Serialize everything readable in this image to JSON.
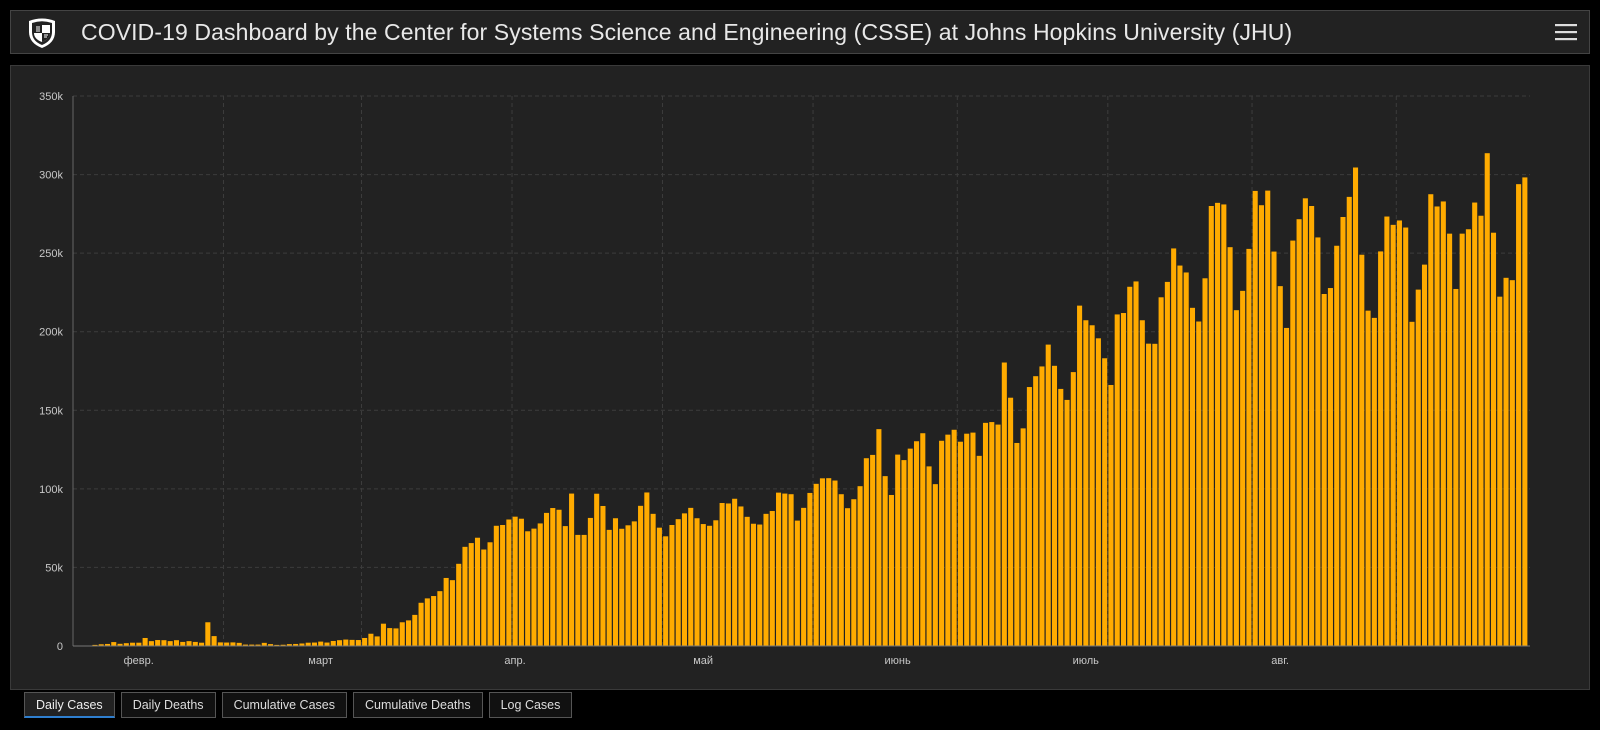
{
  "header": {
    "title": "COVID-19 Dashboard by the Center for Systems Science and Engineering (CSSE) at Johns Hopkins University (JHU)"
  },
  "tabs": [
    {
      "label": "Daily Cases",
      "active": true
    },
    {
      "label": "Daily Deaths",
      "active": false
    },
    {
      "label": "Cumulative Cases",
      "active": false
    },
    {
      "label": "Cumulative Deaths",
      "active": false
    },
    {
      "label": "Log Cases",
      "active": false
    }
  ],
  "colors": {
    "bar": "#ffab00",
    "background": "#222222",
    "grid": "#3c3c3c",
    "axis_text": "#c8c8c8",
    "active_tab_accent": "#2f7fcf"
  },
  "chart_data": {
    "type": "bar",
    "title": "",
    "xlabel": "",
    "ylabel": "",
    "ylim": [
      0,
      350000
    ],
    "grid": true,
    "yticks": [
      0,
      50000,
      100000,
      150000,
      200000,
      250000,
      300000,
      350000
    ],
    "ytick_labels": [
      "0",
      "50k",
      "100k",
      "150k",
      "200k",
      "250k",
      "300k",
      "350k"
    ],
    "x_start": "2020-01-22",
    "xtick_labels": [
      {
        "label": "февр.",
        "date": "2020-02-01"
      },
      {
        "label": "март",
        "date": "2020-03-01"
      },
      {
        "label": "апр.",
        "date": "2020-04-01"
      },
      {
        "label": "май",
        "date": "2020-05-01"
      },
      {
        "label": "июнь",
        "date": "2020-06-01"
      },
      {
        "label": "июль",
        "date": "2020-07-01"
      },
      {
        "label": "авг.",
        "date": "2020-08-01"
      }
    ],
    "values": [
      0,
      100,
      300,
      700,
      1100,
      1300,
      2500,
      1400,
      1800,
      2100,
      2100,
      5100,
      3100,
      3800,
      3700,
      3100,
      3700,
      2600,
      3100,
      2600,
      2100,
      15100,
      6300,
      2300,
      2200,
      2300,
      2000,
      900,
      900,
      900,
      2000,
      1200,
      700,
      800,
      1200,
      1300,
      1600,
      2100,
      2200,
      2800,
      2200,
      3200,
      3700,
      4100,
      3900,
      3800,
      5100,
      7800,
      6100,
      14200,
      11400,
      11200,
      15100,
      16300,
      19800,
      27500,
      30300,
      31800,
      34900,
      43300,
      41900,
      52300,
      63100,
      65500,
      68900,
      61400,
      66000,
      76500,
      77000,
      80500,
      82300,
      81000,
      73000,
      74700,
      78000,
      84700,
      87800,
      86700,
      76300,
      97000,
      70700,
      70700,
      81500,
      96900,
      89100,
      73900,
      81300,
      74600,
      76800,
      79300,
      89200,
      97700,
      84100,
      75300,
      69800,
      77000,
      80700,
      84400,
      87900,
      81300,
      77600,
      76500,
      80000,
      91000,
      90700,
      93700,
      88800,
      82200,
      77800,
      77300,
      84100,
      85900,
      97600,
      97000,
      96600,
      79800,
      87900,
      97400,
      103200,
      106700,
      106800,
      105300,
      96600,
      87700,
      93400,
      101700,
      119500,
      121600,
      138000,
      108100,
      96100,
      121800,
      118300,
      125600,
      130300,
      135400,
      114300,
      103000,
      130600,
      134500,
      137600,
      130000,
      135100,
      135800,
      121000,
      142000,
      142500,
      140900,
      180400,
      158000,
      129200,
      138500,
      164800,
      171700,
      177900,
      191800,
      178300,
      163600,
      156600,
      174300,
      216600,
      207300,
      204100,
      195800,
      183100,
      166100,
      211000,
      211900,
      228600,
      232000,
      207300,
      192400,
      192300,
      221900,
      231700,
      253000,
      242100,
      237700,
      215200,
      206500,
      234000,
      280000,
      282000,
      281000,
      253800,
      213700,
      226000,
      252700,
      289600,
      280500,
      289800,
      251000,
      229000,
      202400,
      258000,
      271600,
      284900,
      280000,
      260000,
      224000,
      227800,
      254700,
      273000,
      285800,
      304500,
      249000,
      213400,
      208800,
      251100,
      273300,
      268000,
      270800,
      266300,
      206300,
      226800,
      242700,
      287500,
      279700,
      282900,
      262400,
      227200,
      262400,
      265200,
      282200,
      273800,
      313600,
      263000,
      222300,
      234300,
      232800,
      293900,
      298200
    ]
  }
}
